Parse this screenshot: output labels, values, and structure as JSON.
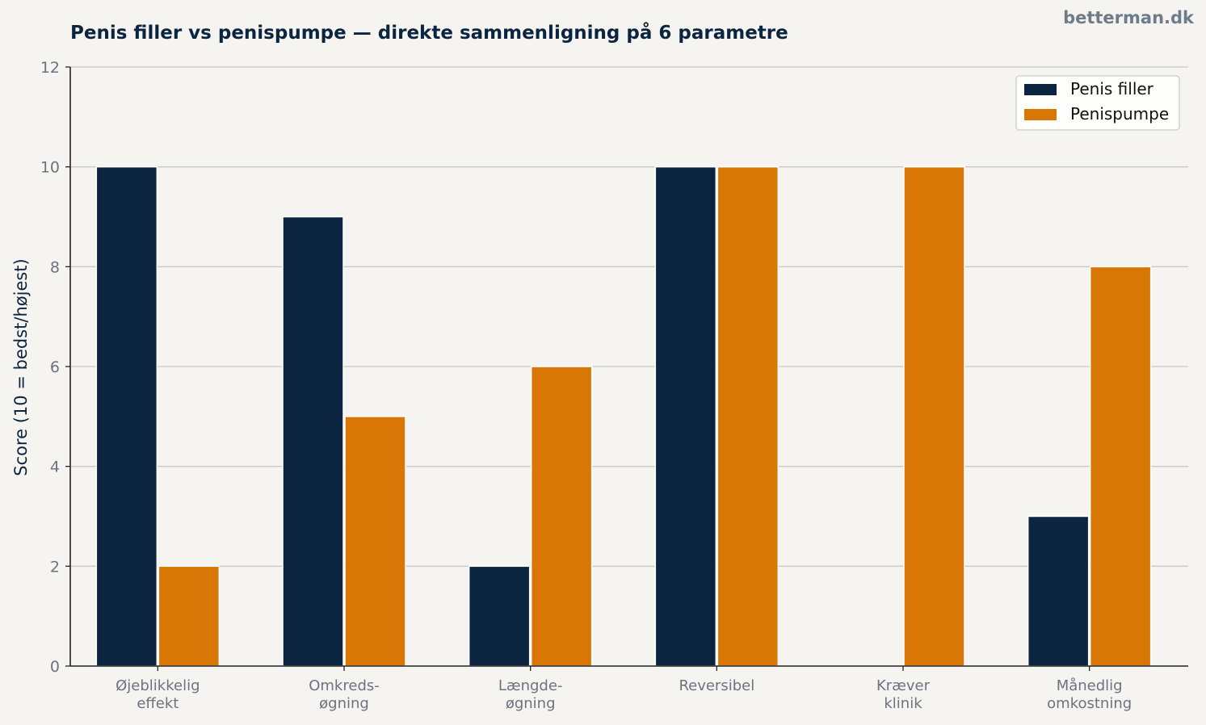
{
  "watermark": "betterman.dk",
  "chart_data": {
    "type": "bar",
    "title": "Penis filler vs penispumpe — direkte sammenligning på 6 parametre",
    "ylabel": "Score (10 = bedst/højest)",
    "xlabel": "",
    "ylim": [
      0,
      12
    ],
    "yticks": [
      0,
      2,
      4,
      6,
      8,
      10,
      12
    ],
    "grid": true,
    "legend_position": "top-right",
    "categories": [
      [
        "Øjeblikkelig",
        "effekt"
      ],
      [
        "Omkreds-",
        "øgning"
      ],
      [
        "Længde-",
        "øgning"
      ],
      [
        "Reversibel"
      ],
      [
        "Kræver",
        "klinik"
      ],
      [
        "Månedlig",
        "omkostning"
      ]
    ],
    "series": [
      {
        "name": "Penis filler",
        "color": "#0b2540",
        "values": [
          10,
          9,
          2,
          10,
          0,
          3
        ]
      },
      {
        "name": "Penispumpe",
        "color": "#d97706",
        "values": [
          2,
          5,
          6,
          10,
          10,
          8
        ]
      }
    ]
  }
}
